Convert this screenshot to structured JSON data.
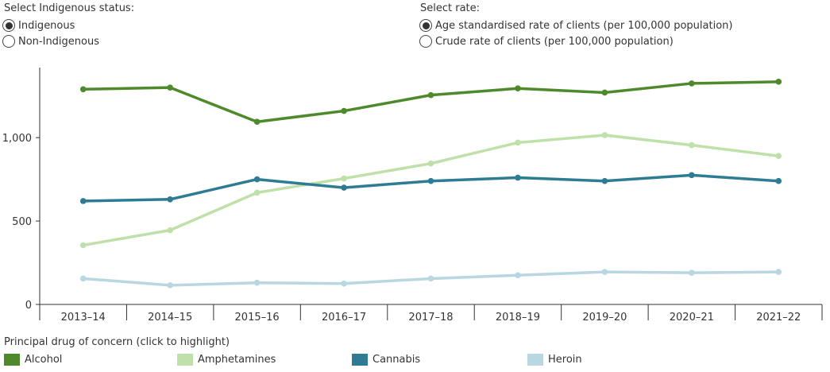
{
  "controls": {
    "indigenous": {
      "title": "Select Indigenous status:",
      "options": [
        {
          "label": "Indigenous",
          "selected": true
        },
        {
          "label": "Non-Indigenous",
          "selected": false
        }
      ]
    },
    "rate": {
      "title": "Select rate:",
      "options": [
        {
          "label": "Age standardised rate of clients (per 100,000 population)",
          "selected": true
        },
        {
          "label": "Crude rate of clients (per 100,000 population)",
          "selected": false
        }
      ]
    }
  },
  "legend": {
    "title": "Principal drug of concern (click to highlight)"
  },
  "chart_data": {
    "type": "line",
    "title": "",
    "xlabel": "",
    "ylabel": "",
    "x": [
      "2013–14",
      "2014–15",
      "2015–16",
      "2016–17",
      "2017–18",
      "2018–19",
      "2019–20",
      "2020–21",
      "2021–22"
    ],
    "ylim": [
      0,
      1420
    ],
    "yticks": [
      0,
      500,
      1000
    ],
    "ytick_labels": [
      "0",
      "500",
      "1,000"
    ],
    "grid": false,
    "legend_position": "bottom",
    "series": [
      {
        "name": "Alcohol",
        "color": "#4e8a2c",
        "values": [
          1290,
          1300,
          1095,
          1160,
          1255,
          1295,
          1270,
          1325,
          1335
        ]
      },
      {
        "name": "Amphetamines",
        "color": "#bfe0a8",
        "values": [
          355,
          445,
          670,
          755,
          845,
          970,
          1015,
          955,
          890
        ]
      },
      {
        "name": "Cannabis",
        "color": "#2e7c93",
        "values": [
          620,
          630,
          750,
          700,
          740,
          760,
          740,
          775,
          740
        ]
      },
      {
        "name": "Heroin",
        "color": "#b8d7e0",
        "values": [
          155,
          115,
          130,
          125,
          155,
          175,
          195,
          190,
          195
        ]
      }
    ]
  }
}
